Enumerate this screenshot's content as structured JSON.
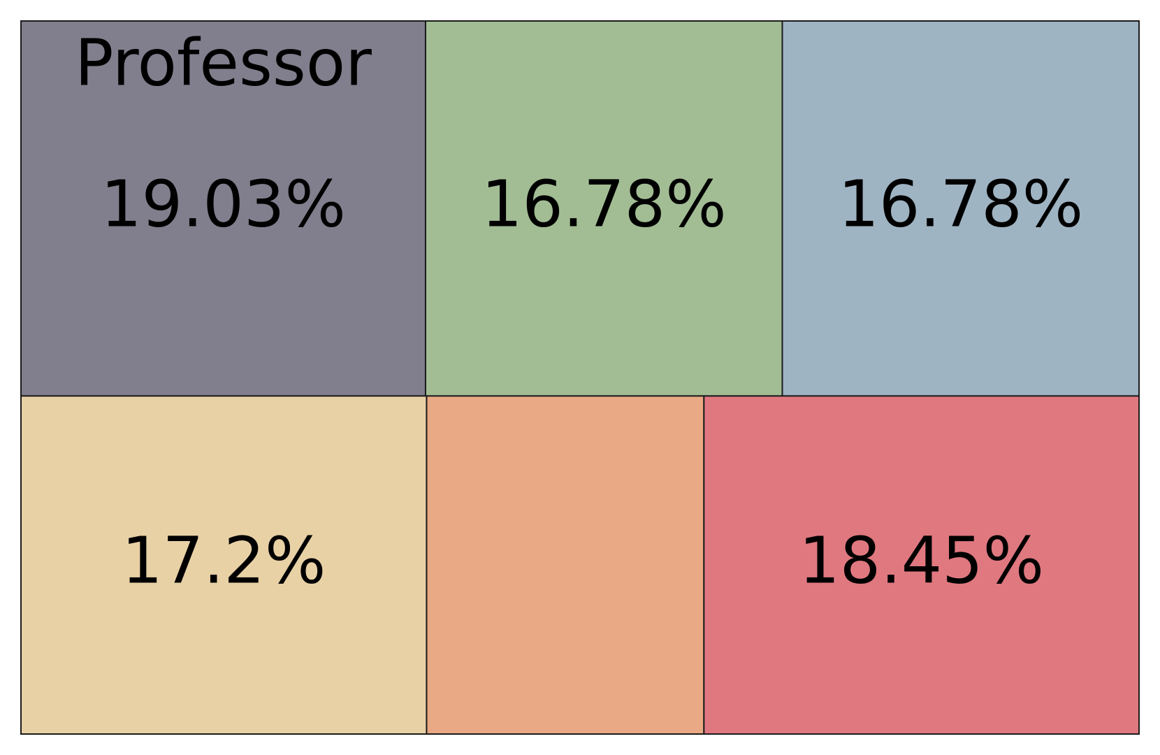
{
  "chart_data": {
    "type": "treemap",
    "categories": [
      "Professor",
      null,
      null,
      null,
      null,
      null
    ],
    "values": [
      19.03,
      16.78,
      16.78,
      17.2,
      11.76,
      18.45
    ],
    "value_labels": [
      "19.03%",
      "16.78%",
      "16.78%",
      "17.2%",
      null,
      "18.45%"
    ],
    "colors": [
      "#817f8d",
      "#a2bd94",
      "#9fb4c3",
      "#e9d1a6",
      "#e9a984",
      "#e07880"
    ]
  }
}
